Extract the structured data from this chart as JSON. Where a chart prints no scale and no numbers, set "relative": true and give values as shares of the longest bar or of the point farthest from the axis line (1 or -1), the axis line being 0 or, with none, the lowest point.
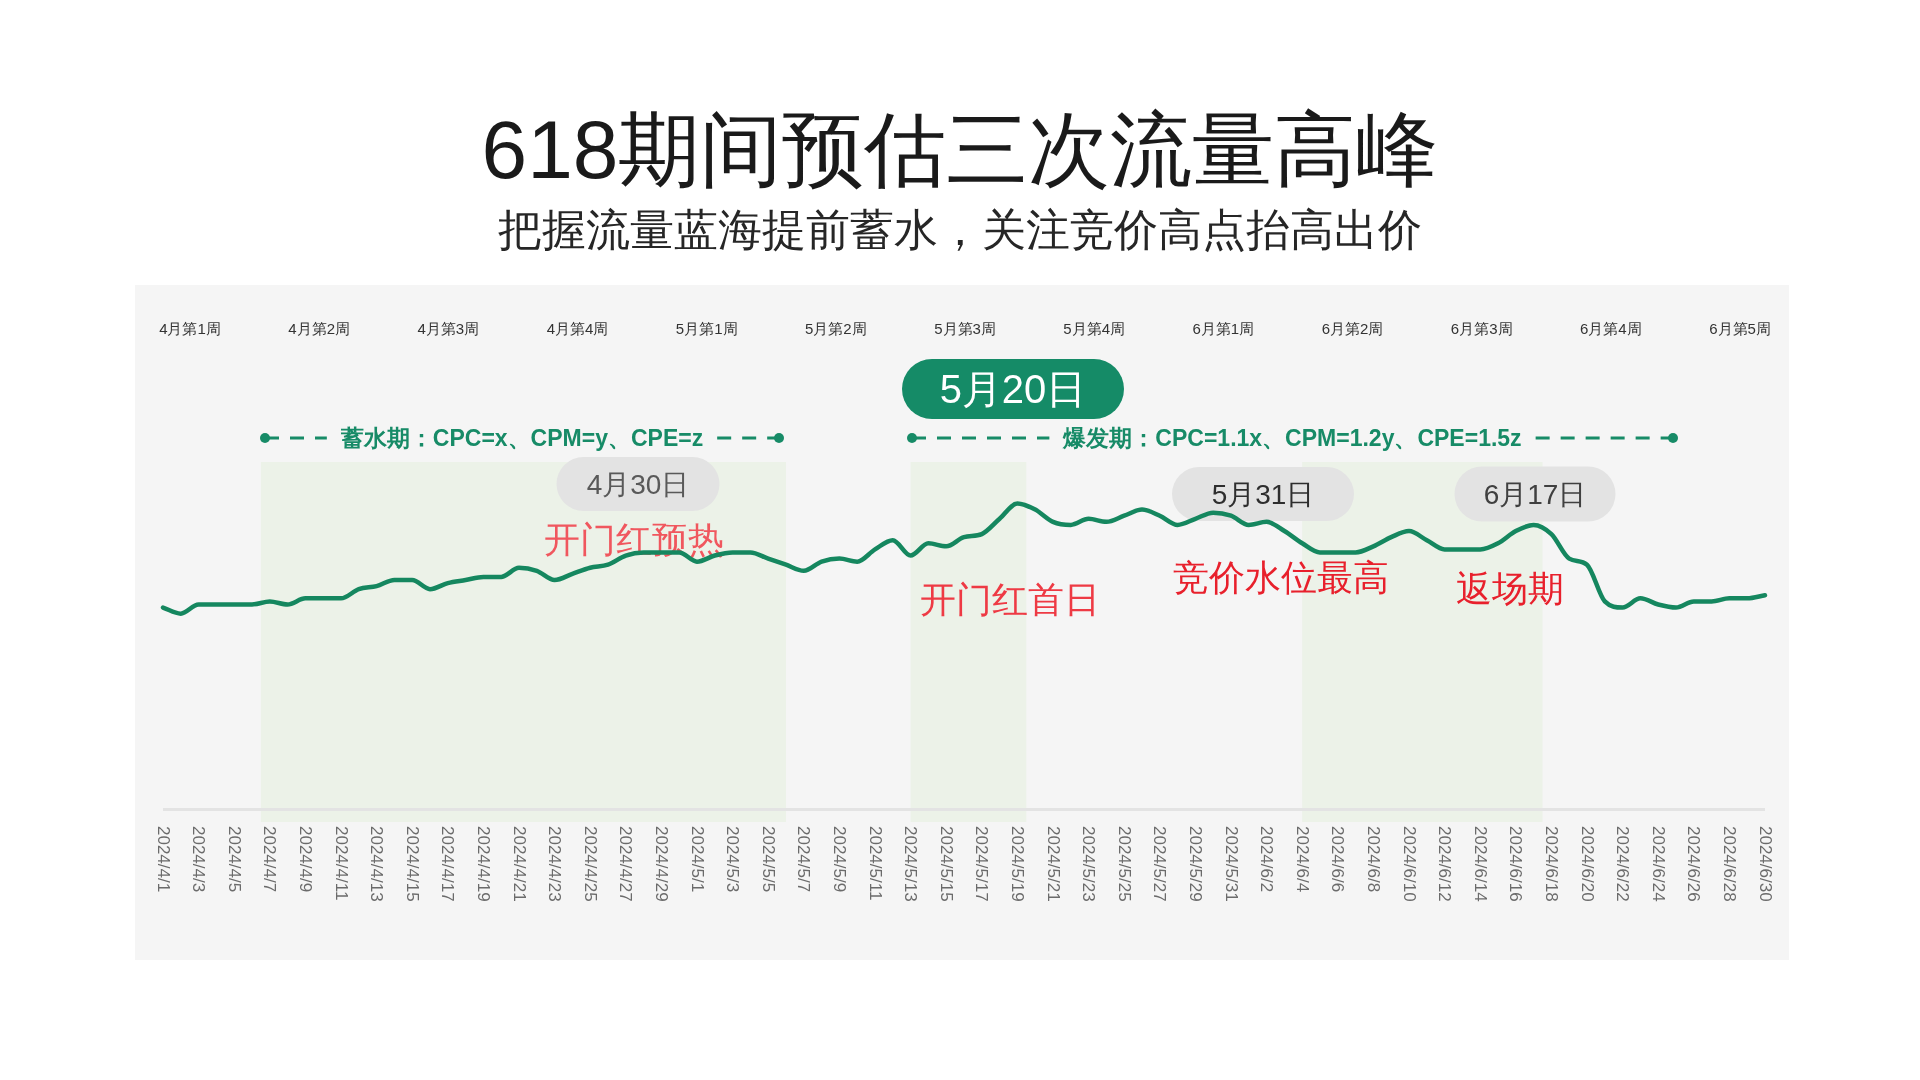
{
  "chart_data": {
    "type": "line",
    "title": "618期间预估三次流量高峰",
    "subtitle": "把握流量蓝海提前蓄水，关注竞价高点抬高出价",
    "relative": true,
    "color": "#15875f",
    "x": [
      "2024-04-01",
      "2024-04-02",
      "2024-04-03",
      "2024-04-04",
      "2024-04-05",
      "2024-04-06",
      "2024-04-07",
      "2024-04-08",
      "2024-04-09",
      "2024-04-10",
      "2024-04-11",
      "2024-04-12",
      "2024-04-13",
      "2024-04-14",
      "2024-04-15",
      "2024-04-16",
      "2024-04-17",
      "2024-04-18",
      "2024-04-19",
      "2024-04-20",
      "2024-04-21",
      "2024-04-22",
      "2024-04-23",
      "2024-04-24",
      "2024-04-25",
      "2024-04-26",
      "2024-04-27",
      "2024-04-28",
      "2024-04-29",
      "2024-04-30",
      "2024-05-01",
      "2024-05-02",
      "2024-05-03",
      "2024-05-04",
      "2024-05-05",
      "2024-05-06",
      "2024-05-07",
      "2024-05-08",
      "2024-05-09",
      "2024-05-10",
      "2024-05-11",
      "2024-05-12",
      "2024-05-13",
      "2024-05-14",
      "2024-05-15",
      "2024-05-16",
      "2024-05-17",
      "2024-05-18",
      "2024-05-19",
      "2024-05-20",
      "2024-05-21",
      "2024-05-22",
      "2024-05-23",
      "2024-05-24",
      "2024-05-25",
      "2024-05-26",
      "2024-05-27",
      "2024-05-28",
      "2024-05-29",
      "2024-05-30",
      "2024-05-31",
      "2024-06-01",
      "2024-06-02",
      "2024-06-03",
      "2024-06-04",
      "2024-06-05",
      "2024-06-06",
      "2024-06-07",
      "2024-06-08",
      "2024-06-09",
      "2024-06-10",
      "2024-06-11",
      "2024-06-12",
      "2024-06-13",
      "2024-06-14",
      "2024-06-15",
      "2024-06-16",
      "2024-06-17",
      "2024-06-18",
      "2024-06-19",
      "2024-06-20",
      "2024-06-21",
      "2024-06-22",
      "2024-06-23",
      "2024-06-24",
      "2024-06-25",
      "2024-06-26",
      "2024-06-27",
      "2024-06-28",
      "2024-06-29",
      "2024-06-30"
    ],
    "values": [
      0.66,
      0.64,
      0.67,
      0.67,
      0.67,
      0.67,
      0.68,
      0.67,
      0.69,
      0.69,
      0.69,
      0.72,
      0.73,
      0.75,
      0.75,
      0.72,
      0.74,
      0.75,
      0.76,
      0.76,
      0.79,
      0.78,
      0.75,
      0.77,
      0.79,
      0.8,
      0.83,
      0.84,
      0.84,
      0.84,
      0.81,
      0.83,
      0.84,
      0.84,
      0.82,
      0.8,
      0.78,
      0.81,
      0.82,
      0.81,
      0.85,
      0.88,
      0.83,
      0.87,
      0.86,
      0.89,
      0.9,
      0.95,
      1,
      0.98,
      0.94,
      0.93,
      0.95,
      0.94,
      0.96,
      0.98,
      0.96,
      0.93,
      0.95,
      0.97,
      0.96,
      0.93,
      0.94,
      0.91,
      0.87,
      0.84,
      0.84,
      0.84,
      0.86,
      0.89,
      0.91,
      0.88,
      0.85,
      0.85,
      0.85,
      0.87,
      0.91,
      0.93,
      0.9,
      0.82,
      0.8,
      0.68,
      0.66,
      0.69,
      0.67,
      0.66,
      0.68,
      0.68,
      0.69,
      0.69,
      0.7
    ],
    "xlim": [
      "2024-04-01",
      "2024-06-30"
    ],
    "xticks": [
      {
        "value": "2024-04-01",
        "label": "2024/4/1"
      },
      {
        "value": "2024-04-03",
        "label": "2024/4/3"
      },
      {
        "value": "2024-04-05",
        "label": "2024/4/5"
      },
      {
        "value": "2024-04-07",
        "label": "2024/4/7"
      },
      {
        "value": "2024-04-09",
        "label": "2024/4/9"
      },
      {
        "value": "2024-04-11",
        "label": "2024/4/11"
      },
      {
        "value": "2024-04-13",
        "label": "2024/4/13"
      },
      {
        "value": "2024-04-15",
        "label": "2024/4/15"
      },
      {
        "value": "2024-04-17",
        "label": "2024/4/17"
      },
      {
        "value": "2024-04-19",
        "label": "2024/4/19"
      },
      {
        "value": "2024-04-21",
        "label": "2024/4/21"
      },
      {
        "value": "2024-04-23",
        "label": "2024/4/23"
      },
      {
        "value": "2024-04-25",
        "label": "2024/4/25"
      },
      {
        "value": "2024-04-27",
        "label": "2024/4/27"
      },
      {
        "value": "2024-04-29",
        "label": "2024/4/29"
      },
      {
        "value": "2024-05-01",
        "label": "2024/5/1"
      },
      {
        "value": "2024-05-03",
        "label": "2024/5/3"
      },
      {
        "value": "2024-05-05",
        "label": "2024/5/5"
      },
      {
        "value": "2024-05-07",
        "label": "2024/5/7"
      },
      {
        "value": "2024-05-09",
        "label": "2024/5/9"
      },
      {
        "value": "2024-05-11",
        "label": "2024/5/11"
      },
      {
        "value": "2024-05-13",
        "label": "2024/5/13"
      },
      {
        "value": "2024-05-15",
        "label": "2024/5/15"
      },
      {
        "value": "2024-05-17",
        "label": "2024/5/17"
      },
      {
        "value": "2024-05-19",
        "label": "2024/5/19"
      },
      {
        "value": "2024-05-21",
        "label": "2024/5/21"
      },
      {
        "value": "2024-05-23",
        "label": "2024/5/23"
      },
      {
        "value": "2024-05-25",
        "label": "2024/5/25"
      },
      {
        "value": "2024-05-27",
        "label": "2024/5/27"
      },
      {
        "value": "2024-05-29",
        "label": "2024/5/29"
      },
      {
        "value": "2024-05-31",
        "label": "2024/5/31"
      },
      {
        "value": "2024-06-02",
        "label": "2024/6/2"
      },
      {
        "value": "2024-06-04",
        "label": "2024/6/4"
      },
      {
        "value": "2024-06-06",
        "label": "2024/6/6"
      },
      {
        "value": "2024-06-08",
        "label": "2024/6/8"
      },
      {
        "value": "2024-06-10",
        "label": "2024/6/10"
      },
      {
        "value": "2024-06-12",
        "label": "2024/6/12"
      },
      {
        "value": "2024-06-14",
        "label": "2024/6/14"
      },
      {
        "value": "2024-06-16",
        "label": "2024/6/16"
      },
      {
        "value": "2024-06-18",
        "label": "2024/6/18"
      },
      {
        "value": "2024-06-20",
        "label": "2024/6/20"
      },
      {
        "value": "2024-06-22",
        "label": "2024/6/22"
      },
      {
        "value": "2024-06-24",
        "label": "2024/6/24"
      },
      {
        "value": "2024-06-26",
        "label": "2024/6/26"
      },
      {
        "value": "2024-06-28",
        "label": "2024/6/28"
      },
      {
        "value": "2024-06-30",
        "label": "2024/6/30"
      }
    ],
    "bands": [
      {
        "axis": "x",
        "from": "2024-04-06T12:00",
        "to": "2024-05-06",
        "color": "#ecf2e8"
      },
      {
        "axis": "x",
        "from": "2024-05-13",
        "to": "2024-05-19T12:00",
        "color": "#ecf2e8"
      },
      {
        "axis": "x",
        "from": "2024-06-04",
        "to": "2024-06-17T12:00",
        "color": "#ecf2e8"
      }
    ],
    "annotations": [
      "4月第1周",
      "4月第2周",
      "4月第3周",
      "4月第4周",
      "5月第1周",
      "5月第2周",
      "5月第3周",
      "5月第4周",
      "6月第1周",
      "6月第2周",
      "6月第3周",
      "6月第4周",
      "6月第5周",
      "5月20日",
      "蓄水期：CPC=x、CPM=y、CPE=z",
      "爆发期：CPC=1.1x、CPM=1.2y、CPE=1.5z",
      "4月30日",
      "开门红预热",
      "开门红首日",
      "5月31日",
      "竞价水位最高",
      "6月17日",
      "返场期"
    ]
  }
}
